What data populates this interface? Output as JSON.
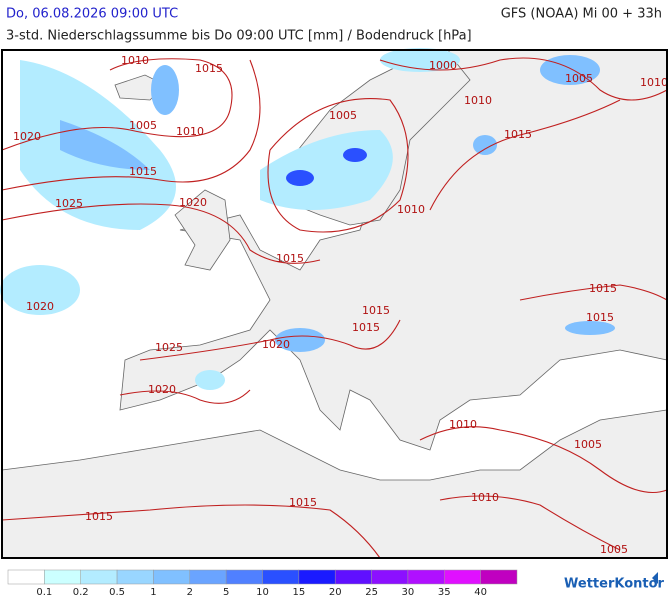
{
  "header": {
    "date": "Do, 06.08.2026 09:00 UTC",
    "model": "GFS (NOAA) Mi 00 + 33h",
    "subtitle": "3-std. Niederschlagssumme bis Do 09:00 UTC [mm] / Bodendruck [hPa]"
  },
  "isobars": [
    "1010",
    "1015",
    "1005",
    "1010",
    "1020",
    "1015",
    "1025",
    "1020",
    "1005",
    "1000",
    "1005",
    "1010",
    "1010",
    "1015",
    "1010",
    "1015",
    "1020",
    "1015",
    "1015",
    "1015",
    "1015",
    "1020",
    "1025",
    "1020",
    "1010",
    "1005",
    "1010",
    "1015",
    "1015",
    "1005"
  ],
  "legend": {
    "values": [
      0.1,
      0.2,
      0.5,
      1,
      2,
      5,
      10,
      15,
      20,
      25,
      30,
      35,
      40
    ],
    "colors": [
      "#ffffff",
      "#ccffff",
      "#b3ecff",
      "#99d6ff",
      "#80c0ff",
      "#6aa4ff",
      "#5080ff",
      "#2a50ff",
      "#1a1aff",
      "#6010ff",
      "#8c10ff",
      "#b010ff",
      "#e010ff",
      "#c000c0"
    ]
  },
  "logo": "WetterKontor"
}
